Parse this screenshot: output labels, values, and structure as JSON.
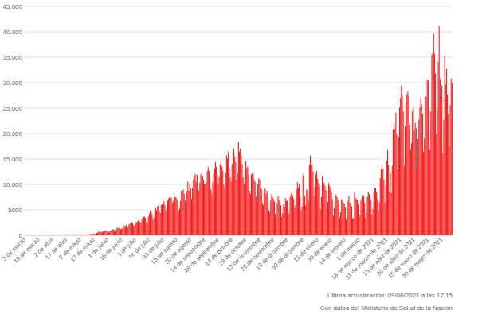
{
  "chart_data": {
    "type": "bar",
    "color": "#f21b1b",
    "grid": true,
    "ylim": [
      0,
      45000
    ],
    "yticks": [
      0,
      5000,
      {
        "value": 10000,
        "label": "10.000"
      },
      {
        "value": 15000,
        "label": "15.000"
      },
      {
        "value": 20000,
        "label": "20.000"
      },
      {
        "value": 25000,
        "label": "25.000"
      },
      {
        "value": 30000,
        "label": "30.000"
      },
      {
        "value": 35000,
        "label": "35.000"
      },
      {
        "value": 40000,
        "label": "40.000"
      },
      {
        "value": 45000,
        "label": "45.000"
      }
    ],
    "annotations": [
      "Última actualización: 09/06/2021 a las 17:15",
      "Con datos del Ministerio de Salud de la Nación"
    ],
    "categories": [
      "3 de marzo",
      null,
      null,
      null,
      null,
      null,
      null,
      null,
      null,
      null,
      null,
      null,
      null,
      null,
      null,
      "18 de marzo",
      null,
      null,
      null,
      null,
      null,
      null,
      null,
      null,
      null,
      null,
      null,
      null,
      null,
      null,
      "2 de abril",
      null,
      null,
      null,
      null,
      null,
      null,
      null,
      null,
      null,
      null,
      null,
      null,
      null,
      null,
      "17 de abril",
      null,
      null,
      null,
      null,
      null,
      null,
      null,
      null,
      null,
      null,
      null,
      null,
      null,
      null,
      "2 de mayo",
      null,
      null,
      null,
      null,
      null,
      null,
      null,
      null,
      null,
      null,
      null,
      null,
      null,
      null,
      "17 de mayo",
      null,
      null,
      null,
      null,
      null,
      null,
      null,
      null,
      null,
      null,
      null,
      null,
      null,
      null,
      "1 de junio",
      null,
      null,
      null,
      null,
      null,
      null,
      null,
      null,
      null,
      null,
      null,
      null,
      null,
      null,
      "16 de junio",
      null,
      null,
      null,
      null,
      null,
      null,
      null,
      null,
      null,
      null,
      null,
      null,
      null,
      null,
      "1 de julio",
      null,
      null,
      null,
      null,
      null,
      null,
      null,
      null,
      null,
      null,
      null,
      null,
      null,
      null,
      "16 de julio",
      null,
      null,
      null,
      null,
      null,
      null,
      null,
      null,
      null,
      null,
      null,
      null,
      null,
      null,
      "31 de julio",
      null,
      null,
      null,
      null,
      null,
      null,
      null,
      null,
      null,
      null,
      null,
      null,
      null,
      null,
      "15 de agosto",
      null,
      null,
      null,
      null,
      null,
      null,
      null,
      null,
      null,
      null,
      null,
      null,
      null,
      null,
      "30 de agosto",
      null,
      null,
      null,
      null,
      null,
      null,
      null,
      null,
      null,
      null,
      null,
      null,
      null,
      null,
      "14 de septiembre",
      null,
      null,
      null,
      null,
      null,
      null,
      null,
      null,
      null,
      null,
      null,
      null,
      null,
      null,
      "29 de septiembre",
      null,
      null,
      null,
      null,
      null,
      null,
      null,
      null,
      null,
      null,
      null,
      null,
      null,
      null,
      "14 de octubre",
      null,
      null,
      null,
      null,
      null,
      null,
      null,
      null,
      null,
      null,
      null,
      null,
      null,
      null,
      "29 de octubre",
      null,
      null,
      null,
      null,
      null,
      null,
      null,
      null,
      null,
      null,
      null,
      null,
      null,
      null,
      "13 de noviembre",
      null,
      null,
      null,
      null,
      null,
      null,
      null,
      null,
      null,
      null,
      null,
      null,
      null,
      null,
      "28 de noviembre",
      null,
      null,
      null,
      null,
      null,
      null,
      null,
      null,
      null,
      null,
      null,
      null,
      null,
      null,
      "13 de diciembre",
      null,
      null,
      null,
      null,
      null,
      null,
      null,
      null,
      null,
      null,
      null,
      null,
      null,
      null,
      null,
      null,
      "30 de diciembre",
      null,
      null,
      null,
      null,
      null,
      null,
      null,
      null,
      null,
      null,
      null,
      null,
      null,
      null,
      null,
      "15 de enero",
      null,
      null,
      null,
      null,
      null,
      null,
      null,
      null,
      null,
      null,
      null,
      null,
      null,
      null,
      "30 de enero",
      null,
      null,
      null,
      null,
      null,
      null,
      null,
      null,
      null,
      null,
      null,
      null,
      null,
      null,
      "14 de febrero",
      null,
      null,
      null,
      null,
      null,
      null,
      null,
      null,
      null,
      null,
      null,
      null,
      null,
      null,
      "1 de marzo",
      null,
      null,
      null,
      null,
      null,
      null,
      null,
      null,
      null,
      null,
      null,
      null,
      null,
      null,
      "16 de marzo de 2021",
      null,
      null,
      null,
      null,
      null,
      null,
      null,
      null,
      null,
      null,
      null,
      null,
      null,
      null,
      "31 de marzo de 2021",
      null,
      null,
      null,
      null,
      null,
      null,
      null,
      null,
      null,
      null,
      null,
      null,
      null,
      null,
      "15 de abril de 2021",
      null,
      null,
      null,
      null,
      null,
      null,
      null,
      null,
      null,
      null,
      null,
      null,
      null,
      null,
      "30 de abril de 2021",
      null,
      null,
      null,
      null,
      null,
      null,
      null,
      null,
      null,
      null,
      null,
      null,
      null,
      null,
      "15 de mayo de 2021",
      null,
      null,
      null,
      null,
      null,
      null,
      null,
      null,
      null,
      null,
      null,
      null,
      null,
      null,
      "30 de mayo de 2021",
      null,
      null,
      null,
      null,
      null,
      null,
      null,
      null,
      null,
      null
    ],
    "values": [
      1,
      0,
      5,
      2,
      1,
      4,
      2,
      10,
      12,
      14,
      19,
      31,
      12,
      31,
      21,
      67,
      86,
      89,
      70,
      55,
      41,
      101,
      88,
      65,
      87,
      68,
      89,
      97,
      145,
      116,
      102,
      100,
      81,
      80,
      65,
      111,
      137,
      115,
      144,
      138,
      74,
      89,
      131,
      110,
      143,
      181,
      158,
      143,
      73,
      111,
      122,
      145,
      158,
      165,
      103,
      88,
      167,
      163,
      146,
      173,
      112,
      143,
      109,
      113,
      165,
      178,
      144,
      244,
      163,
      156,
      264,
      199,
      269,
      307,
      363,
      255,
      251,
      466,
      492,
      718,
      600,
      723,
      704,
      552,
      840,
      904,
      983,
      795,
      929,
      581,
      564,
      904,
      929,
      983,
      1141,
      1226,
      795,
      1003,
      1208,
      1393,
      1531,
      1374,
      1386,
      1141,
      1282,
      1374,
      1393,
      1958,
      1741,
      2060,
      1634,
      1581,
      2146,
      2285,
      2441,
      2635,
      2401,
      1886,
      1970,
      2262,
      2667,
      2590,
      2845,
      2979,
      2657,
      2456,
      3099,
      3604,
      3645,
      3663,
      3353,
      2590,
      2494,
      3645,
      4250,
      4783,
      4890,
      4231,
      3141,
      3449,
      4523,
      5344,
      4890,
      5641,
      5929,
      4824,
      4376,
      5939,
      6134,
      6377,
      6693,
      5929,
      4688,
      5241,
      6840,
      7187,
      7482,
      7498,
      7352,
      6365,
      6693,
      7663,
      7513,
      7498,
      7147,
      6840,
      4688,
      5241,
      6792,
      8713,
      8771,
      9026,
      8159,
      6840,
      6365,
      8713,
      10550,
      8771,
      10104,
      9230,
      7187,
      9309,
      10933,
      11717,
      12027,
      10504,
      11905,
      9056,
      8771,
      10343,
      11945,
      12259,
      11650,
      10800,
      10101,
      9968,
      10504,
      12625,
      13467,
      12701,
      11242,
      9056,
      8159,
      10343,
      12027,
      13209,
      14392,
      13477,
      11892,
      10101,
      11394,
      14001,
      14589,
      13561,
      12701,
      9968,
      9056,
      12259,
      15718,
      15099,
      16447,
      13209,
      11394,
      10561,
      14001,
      16546,
      17096,
      15454,
      14392,
      10933,
      12259,
      18326,
      16447,
      17096,
      15718,
      14001,
      11394,
      10101,
      12701,
      14589,
      13209,
      13467,
      11892,
      8771,
      8159,
      11945,
      12259,
      12027,
      10933,
      10504,
      7663,
      6840,
      9968,
      11242,
      10800,
      9309,
      9056,
      6365,
      5929,
      8713,
      9230,
      8159,
      8771,
      7482,
      4890,
      4523,
      6840,
      8159,
      7498,
      7187,
      6693,
      4231,
      3645,
      6377,
      7663,
      6840,
      7147,
      5929,
      3604,
      4376,
      6134,
      5641,
      7352,
      6693,
      6840,
      4824,
      4250,
      7513,
      8159,
      8713,
      7663,
      7187,
      5344,
      5939,
      9026,
      10433,
      9309,
      10104,
      7482,
      4823,
      5641,
      11765,
      12259,
      7771,
      5884,
      9026,
      8771,
      6840,
      13790,
      15660,
      14800,
      13830,
      12540,
      7770,
      9560,
      11990,
      12640,
      11090,
      10310,
      9890,
      5130,
      7530,
      11590,
      10400,
      10280,
      9750,
      8860,
      4780,
      6580,
      10260,
      9700,
      9130,
      8490,
      7150,
      3880,
      5320,
      8250,
      7910,
      7590,
      7030,
      6200,
      3530,
      4540,
      7100,
      6790,
      6400,
      6260,
      5460,
      3170,
      3890,
      6740,
      7800,
      6400,
      6160,
      5700,
      3340,
      3430,
      8460,
      7420,
      7170,
      6980,
      6100,
      3700,
      4020,
      6830,
      7370,
      7920,
      7690,
      6430,
      3430,
      4520,
      7590,
      8610,
      8110,
      7590,
      6860,
      4100,
      5150,
      8490,
      9320,
      9250,
      8560,
      7150,
      4640,
      6510,
      11250,
      12960,
      13710,
      13090,
      10990,
      6500,
      9890,
      14620,
      16760,
      13790,
      8500,
      12330,
      8280,
      13670,
      20870,
      22040,
      20920,
      24130,
      19750,
      12950,
      19370,
      25160,
      27000,
      29470,
      27410,
      24400,
      13700,
      21440,
      26050,
      27720,
      28270,
      27360,
      21750,
      16840,
      18090,
      24450,
      25050,
      20520,
      22130,
      21090,
      13150,
      18900,
      22660,
      25120,
      27030,
      25750,
      23880,
      16450,
      19090,
      27330,
      27220,
      30650,
      30410,
      24680,
      16800,
      24320,
      35470,
      35880,
      39650,
      35700,
      31800,
      19850,
      24650,
      34080,
      41080,
      30760,
      26590,
      29430,
      16260,
      22680,
      35280,
      29660,
      32680,
      27700,
      23780,
      17350,
      25620,
      30850,
      29990
    ]
  }
}
